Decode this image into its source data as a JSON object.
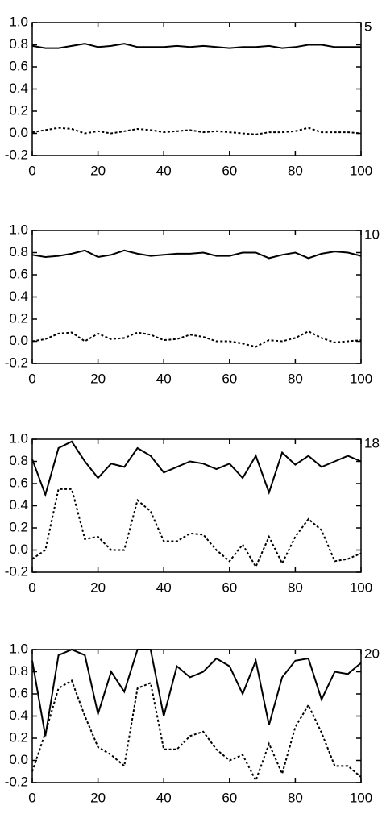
{
  "chart_data": [
    {
      "type": "line",
      "label": "5",
      "x": [
        0,
        4,
        8,
        12,
        16,
        20,
        24,
        28,
        32,
        36,
        40,
        44,
        48,
        52,
        56,
        60,
        64,
        68,
        72,
        76,
        80,
        84,
        88,
        92,
        96,
        100
      ],
      "series": [
        {
          "color": "#000000",
          "dash": "solid",
          "values": [
            0.79,
            0.77,
            0.77,
            0.79,
            0.81,
            0.78,
            0.79,
            0.81,
            0.78,
            0.78,
            0.78,
            0.79,
            0.78,
            0.79,
            0.78,
            0.77,
            0.78,
            0.78,
            0.79,
            0.77,
            0.78,
            0.8,
            0.8,
            0.78,
            0.78,
            0.78
          ]
        },
        {
          "color": "#000000",
          "dash": "dashed",
          "values": [
            0.01,
            0.03,
            0.05,
            0.04,
            0.0,
            0.02,
            0.0,
            0.02,
            0.04,
            0.03,
            0.01,
            0.02,
            0.03,
            0.01,
            0.02,
            0.01,
            0.0,
            -0.01,
            0.01,
            0.01,
            0.02,
            0.05,
            0.01,
            0.01,
            0.01,
            0.0
          ]
        }
      ],
      "xlim": [
        0,
        100
      ],
      "xticks": [
        0,
        20,
        40,
        60,
        80,
        100
      ],
      "ylim": [
        -0.2,
        1.0
      ],
      "yticks": [
        -0.2,
        {
          "value": 0,
          "label": "0.0"
        },
        0.2,
        0.4,
        0.6,
        0.8,
        {
          "value": 1,
          "label": "1.0"
        }
      ]
    },
    {
      "type": "line",
      "label": "10",
      "x": [
        0,
        4,
        8,
        12,
        16,
        20,
        24,
        28,
        32,
        36,
        40,
        44,
        48,
        52,
        56,
        60,
        64,
        68,
        72,
        76,
        80,
        84,
        88,
        92,
        96,
        100
      ],
      "series": [
        {
          "color": "#000000",
          "dash": "solid",
          "values": [
            0.78,
            0.76,
            0.77,
            0.79,
            0.82,
            0.76,
            0.78,
            0.82,
            0.79,
            0.77,
            0.78,
            0.79,
            0.79,
            0.8,
            0.77,
            0.77,
            0.8,
            0.8,
            0.75,
            0.78,
            0.8,
            0.75,
            0.79,
            0.81,
            0.8,
            0.77
          ]
        },
        {
          "color": "#000000",
          "dash": "dashed",
          "values": [
            0.0,
            0.02,
            0.07,
            0.08,
            0.0,
            0.07,
            0.02,
            0.03,
            0.08,
            0.06,
            0.01,
            0.02,
            0.06,
            0.04,
            0.0,
            0.0,
            -0.02,
            -0.05,
            0.01,
            0.0,
            0.03,
            0.09,
            0.03,
            -0.01,
            0.0,
            0.01
          ]
        }
      ],
      "xlim": [
        0,
        100
      ],
      "xticks": [
        0,
        20,
        40,
        60,
        80,
        100
      ],
      "ylim": [
        -0.2,
        1.0
      ],
      "yticks": [
        -0.2,
        {
          "value": 0,
          "label": "0.0"
        },
        0.2,
        0.4,
        0.6,
        0.8,
        {
          "value": 1,
          "label": "1.0"
        }
      ]
    },
    {
      "type": "line",
      "label": "18",
      "x": [
        0,
        4,
        8,
        12,
        16,
        20,
        24,
        28,
        32,
        36,
        40,
        44,
        48,
        52,
        56,
        60,
        64,
        68,
        72,
        76,
        80,
        84,
        88,
        92,
        96,
        100
      ],
      "series": [
        {
          "color": "#000000",
          "dash": "solid",
          "values": [
            0.82,
            0.5,
            0.92,
            0.98,
            0.8,
            0.65,
            0.78,
            0.75,
            0.92,
            0.85,
            0.7,
            0.75,
            0.8,
            0.78,
            0.73,
            0.78,
            0.65,
            0.85,
            0.52,
            0.88,
            0.77,
            0.85,
            0.75,
            0.8,
            0.85,
            0.8
          ]
        },
        {
          "color": "#000000",
          "dash": "dashed",
          "values": [
            -0.08,
            0.0,
            0.55,
            0.55,
            0.1,
            0.12,
            0.0,
            0.0,
            0.45,
            0.35,
            0.08,
            0.08,
            0.15,
            0.14,
            0.0,
            -0.1,
            0.05,
            -0.15,
            0.12,
            -0.12,
            0.12,
            0.28,
            0.18,
            -0.1,
            -0.08,
            -0.03
          ]
        }
      ],
      "xlim": [
        0,
        100
      ],
      "xticks": [
        0,
        20,
        40,
        60,
        80,
        100
      ],
      "ylim": [
        -0.2,
        1.0
      ],
      "yticks": [
        -0.2,
        {
          "value": 0,
          "label": "0.0"
        },
        0.2,
        0.4,
        0.6,
        0.8,
        {
          "value": 1,
          "label": "1.0"
        }
      ]
    },
    {
      "type": "line",
      "label": "20",
      "x": [
        0,
        4,
        8,
        12,
        16,
        20,
        24,
        28,
        32,
        36,
        40,
        44,
        48,
        52,
        56,
        60,
        64,
        68,
        72,
        76,
        80,
        84,
        88,
        92,
        96,
        100
      ],
      "series": [
        {
          "color": "#000000",
          "dash": "solid",
          "values": [
            0.9,
            0.22,
            0.95,
            1.0,
            0.95,
            0.42,
            0.8,
            0.62,
            1.0,
            1.0,
            0.4,
            0.85,
            0.75,
            0.8,
            0.92,
            0.85,
            0.6,
            0.9,
            0.32,
            0.75,
            0.9,
            0.92,
            0.55,
            0.8,
            0.78,
            0.88
          ]
        },
        {
          "color": "#000000",
          "dash": "dashed",
          "values": [
            -0.1,
            0.25,
            0.65,
            0.72,
            0.4,
            0.12,
            0.05,
            -0.05,
            0.65,
            0.7,
            0.1,
            0.1,
            0.22,
            0.26,
            0.1,
            0.0,
            0.05,
            -0.18,
            0.15,
            -0.12,
            0.3,
            0.5,
            0.25,
            -0.05,
            -0.05,
            -0.15
          ]
        }
      ],
      "xlim": [
        0,
        100
      ],
      "xticks": [
        0,
        20,
        40,
        60,
        80,
        100
      ],
      "ylim": [
        -0.2,
        1.0
      ],
      "yticks": [
        -0.2,
        {
          "value": 0,
          "label": "0.0"
        },
        0.2,
        0.4,
        0.6,
        0.8,
        {
          "value": 1,
          "label": "1.0"
        }
      ]
    }
  ]
}
